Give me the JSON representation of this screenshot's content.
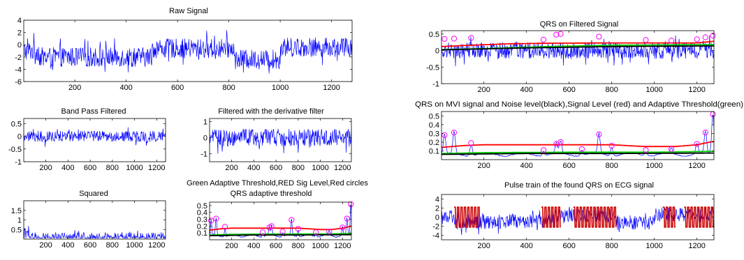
{
  "figure": {
    "left_titles": {
      "raw": "Raw Signal",
      "band": "Band Pass Filtered",
      "deriv": "Filtered with the derivative filter",
      "squared": "Squared",
      "qrs_small_top": "Green Adaptive Threshold,RED Sig Level,Red circles",
      "qrs_small": "QRS adaptive threshold"
    },
    "right_titles": {
      "qrs_filtered": "QRS on Filtered Signal",
      "qrs_mvi": "QRS on MVI signal and Noise level(black),Signal Level (red) and Adaptive Threshold(green)",
      "pulse": "Pulse train of the found QRS on ECG signal"
    }
  },
  "chart_data": [
    {
      "id": "raw",
      "type": "line",
      "title": "Raw Signal",
      "xlim": [
        1,
        1280
      ],
      "ylim": [
        -6,
        4
      ],
      "xticks": [
        200,
        400,
        600,
        800,
        1000,
        1200
      ],
      "yticks": [
        4,
        2,
        0,
        -2,
        -4,
        -6
      ],
      "series": [
        {
          "color": "#0000ff",
          "baseline_segments": [
            [
              1,
              60,
              -1
            ],
            [
              60,
              500,
              -2
            ],
            [
              500,
              820,
              -0.6
            ],
            [
              820,
              1000,
              -2.4
            ],
            [
              1000,
              1280,
              -0.4
            ]
          ],
          "noise_amplitude": 1.6
        }
      ]
    },
    {
      "id": "band",
      "type": "line",
      "title": "Band Pass Filtered",
      "xlim": [
        1,
        1280
      ],
      "ylim": [
        -1,
        0.7
      ],
      "xticks": [
        200,
        400,
        600,
        800,
        1000,
        1200
      ],
      "yticks": [
        0.5,
        0,
        -0.5,
        -1
      ],
      "series": [
        {
          "color": "#0000ff",
          "baseline": 0,
          "noise_amplitude": 0.22
        }
      ]
    },
    {
      "id": "deriv",
      "type": "line",
      "title": "Filtered with the derivative filter",
      "xlim": [
        1,
        1280
      ],
      "ylim": [
        -1.5,
        1.2
      ],
      "xticks": [
        200,
        400,
        600,
        800,
        1000,
        1200
      ],
      "yticks": [
        1,
        0,
        -1
      ],
      "series": [
        {
          "color": "#0000ff",
          "baseline": 0,
          "noise_amplitude": 0.55
        }
      ]
    },
    {
      "id": "squared",
      "type": "line",
      "title": "Squared",
      "xlim": [
        1,
        1280
      ],
      "ylim": [
        0,
        2
      ],
      "xticks": [
        200,
        400,
        600,
        800,
        1000,
        1200
      ],
      "yticks": [
        1.5,
        1,
        0.5
      ],
      "series": [
        {
          "color": "#0000ff",
          "baseline": 0.05,
          "noise_amplitude": 0.3
        }
      ]
    },
    {
      "id": "qrs_small",
      "type": "line",
      "title": "QRS adaptive threshold",
      "xlim": [
        1,
        1280
      ],
      "ylim": [
        0,
        0.55
      ],
      "xticks": [
        200,
        400,
        600,
        800,
        1000,
        1200
      ],
      "yticks": [
        0.5,
        0.4,
        0.3,
        0.2,
        0.1
      ],
      "series": [
        {
          "name": "MVI",
          "color": "#0000ff",
          "kind": "mvi"
        },
        {
          "name": "Signal Level",
          "color": "#ff0000",
          "x": [
            1,
            100,
            200,
            400,
            600,
            800,
            1000,
            1100,
            1200,
            1280
          ],
          "y": [
            0.14,
            0.16,
            0.17,
            0.17,
            0.17,
            0.17,
            0.15,
            0.15,
            0.17,
            0.2
          ]
        },
        {
          "name": "Adaptive Threshold",
          "color": "#00cc00",
          "x": [
            1,
            200,
            600,
            1000,
            1280
          ],
          "y": [
            0.07,
            0.08,
            0.085,
            0.085,
            0.09
          ]
        },
        {
          "name": "Noise level",
          "color": "#000000",
          "x": [
            1,
            400,
            800,
            1280
          ],
          "y": [
            0.06,
            0.07,
            0.07,
            0.075
          ]
        }
      ],
      "peaks": {
        "x": [
          15,
          60,
          140,
          480,
          540,
          560,
          660,
          740,
          800,
          960,
          1080,
          1200,
          1240,
          1275
        ],
        "y": [
          0.28,
          0.31,
          0.19,
          0.11,
          0.18,
          0.2,
          0.12,
          0.29,
          0.16,
          0.11,
          0.12,
          0.18,
          0.31,
          0.52
        ]
      }
    },
    {
      "id": "qrs_filtered",
      "type": "line",
      "title": "QRS on Filtered Signal",
      "xlim": [
        1,
        1280
      ],
      "ylim": [
        -1,
        0.6
      ],
      "xticks": [
        200,
        400,
        600,
        800,
        1000,
        1200
      ],
      "yticks": [
        0.5,
        0,
        -0.5,
        -1
      ],
      "series": [
        {
          "name": "Filtered",
          "color": "#0000ff",
          "baseline": 0,
          "noise_amplitude": 0.25
        },
        {
          "name": "Signal Level",
          "color": "#ff0000",
          "x": [
            1,
            100,
            300,
            500,
            800,
            1000,
            1200,
            1280
          ],
          "y": [
            0.12,
            0.15,
            0.2,
            0.22,
            0.23,
            0.23,
            0.23,
            0.28
          ]
        },
        {
          "name": "Adaptive Threshold",
          "color": "#00cc00",
          "x": [
            1,
            200,
            500,
            800,
            1280
          ],
          "y": [
            0.03,
            0.06,
            0.12,
            0.16,
            0.18
          ]
        },
        {
          "name": "Noise level",
          "color": "#000000",
          "x": [
            1,
            400,
            800,
            1280
          ],
          "y": [
            0.02,
            0.08,
            0.12,
            0.14
          ]
        }
      ],
      "peaks": {
        "x": [
          15,
          60,
          140,
          480,
          540,
          560,
          740,
          960,
          1080,
          1200,
          1240,
          1275
        ],
        "y": [
          0.35,
          0.36,
          0.38,
          0.33,
          0.48,
          0.5,
          0.42,
          0.32,
          0.3,
          0.34,
          0.4,
          0.45
        ]
      }
    },
    {
      "id": "qrs_mvi",
      "type": "line",
      "title": "QRS on MVI signal and Noise level(black),Signal Level (red) and Adaptive Threshold(green)",
      "xlim": [
        1,
        1280
      ],
      "ylim": [
        0,
        0.55
      ],
      "xticks": [
        200,
        400,
        600,
        800,
        1000,
        1200
      ],
      "yticks": [
        0.5,
        0.4,
        0.3,
        0.2,
        0.1
      ],
      "series": [
        {
          "name": "MVI",
          "color": "#0000ff",
          "kind": "mvi"
        },
        {
          "name": "Signal Level",
          "color": "#ff0000",
          "x": [
            1,
            100,
            200,
            400,
            600,
            800,
            950,
            1100,
            1200,
            1280
          ],
          "y": [
            0.14,
            0.16,
            0.17,
            0.17,
            0.17,
            0.17,
            0.15,
            0.15,
            0.17,
            0.21
          ]
        },
        {
          "name": "Adaptive Threshold",
          "color": "#00cc00",
          "x": [
            1,
            200,
            600,
            1000,
            1280
          ],
          "y": [
            0.07,
            0.08,
            0.085,
            0.085,
            0.095
          ]
        },
        {
          "name": "Noise level",
          "color": "#000000",
          "x": [
            1,
            400,
            800,
            1280
          ],
          "y": [
            0.06,
            0.07,
            0.07,
            0.075
          ]
        }
      ],
      "peaks": {
        "x": [
          15,
          60,
          140,
          480,
          540,
          560,
          660,
          740,
          800,
          960,
          1080,
          1200,
          1240,
          1275
        ],
        "y": [
          0.28,
          0.31,
          0.19,
          0.11,
          0.18,
          0.2,
          0.12,
          0.29,
          0.16,
          0.11,
          0.12,
          0.18,
          0.31,
          0.52
        ]
      }
    },
    {
      "id": "pulse",
      "type": "line",
      "title": "Pulse train of the found QRS on ECG signal",
      "xlim": [
        1,
        1280
      ],
      "ylim": [
        -5,
        5
      ],
      "xticks": [
        200,
        400,
        600,
        800,
        1000,
        1200
      ],
      "yticks": [
        4,
        2,
        0,
        -2,
        -4
      ],
      "series": [
        {
          "name": "ECG",
          "color": "#0000ff",
          "baseline_segments": [
            [
              1,
              60,
              0
            ],
            [
              60,
              500,
              -1
            ],
            [
              500,
              820,
              0.4
            ],
            [
              820,
              1000,
              -1.2
            ],
            [
              1000,
              1280,
              0.6
            ]
          ],
          "noise_amplitude": 1.6
        },
        {
          "name": "Pulse train",
          "color": "#cc0000",
          "bursts": [
            [
              60,
              180
            ],
            [
              470,
              560
            ],
            [
              620,
              820
            ],
            [
              1040,
              1100
            ],
            [
              1140,
              1280
            ]
          ],
          "pulse_amplitude": 2.2
        }
      ]
    }
  ]
}
